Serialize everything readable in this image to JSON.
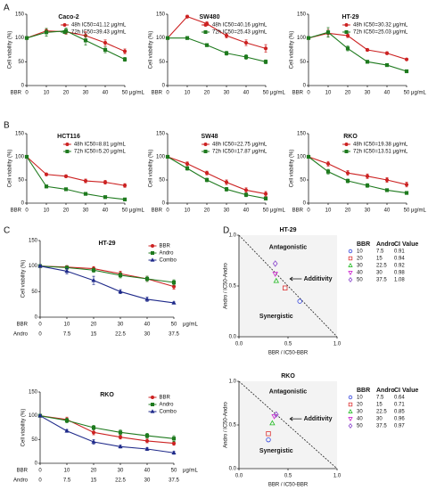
{
  "panels": [
    "A",
    "B",
    "C",
    "D"
  ],
  "chart_data": [
    {
      "type": "line",
      "title": "Caco-2",
      "ylabel": "Cell viability (%)",
      "xlabel": "BBR",
      "xunit": "μg/mL",
      "legend": "upper right",
      "x": [
        0,
        10,
        20,
        30,
        40,
        50
      ],
      "xlim": [
        0,
        50
      ],
      "xticks": [
        0,
        10,
        20,
        30,
        40,
        50
      ],
      "ylim": [
        0,
        150
      ],
      "yticks": [
        0,
        50,
        100,
        150
      ],
      "series": [
        {
          "name": "48h IC50=41.12 μg/mL",
          "color": "#cc2222",
          "marker": "circle",
          "values": [
            100,
            115,
            113,
            105,
            90,
            72
          ],
          "errors": [
            2,
            5,
            5,
            8,
            6,
            5
          ]
        },
        {
          "name": "72h IC50=39.43 μg/mL",
          "color": "#1e7a1e",
          "marker": "square",
          "values": [
            100,
            112,
            115,
            95,
            75,
            55
          ],
          "errors": [
            2,
            8,
            6,
            10,
            6,
            4
          ]
        }
      ]
    },
    {
      "type": "line",
      "title": "SW480",
      "ylabel": "Cell viability (%)",
      "xlabel": "BBR",
      "xunit": "μg/mL",
      "legend": "upper right",
      "x": [
        0,
        10,
        20,
        30,
        40,
        50
      ],
      "xlim": [
        0,
        50
      ],
      "xticks": [
        0,
        10,
        20,
        30,
        40,
        50
      ],
      "ylim": [
        0,
        150
      ],
      "yticks": [
        0,
        50,
        100,
        150
      ],
      "series": [
        {
          "name": "48h IC50=40.16 μg/mL",
          "color": "#cc2222",
          "marker": "circle",
          "values": [
            100,
            145,
            130,
            105,
            90,
            78
          ],
          "errors": [
            2,
            3,
            4,
            5,
            6,
            8
          ]
        },
        {
          "name": "72h IC50=25.43 μg/mL",
          "color": "#1e7a1e",
          "marker": "square",
          "values": [
            100,
            100,
            85,
            68,
            60,
            50
          ],
          "errors": [
            2,
            3,
            3,
            4,
            5,
            4
          ]
        }
      ]
    },
    {
      "type": "line",
      "title": "HT-29",
      "ylabel": "Cell viability (%)",
      "xlabel": "BBR",
      "xunit": "μg/mL",
      "legend": "upper right",
      "x": [
        0,
        10,
        20,
        30,
        40,
        50
      ],
      "xlim": [
        0,
        50
      ],
      "xticks": [
        0,
        10,
        20,
        30,
        40,
        50
      ],
      "ylim": [
        0,
        150
      ],
      "yticks": [
        0,
        50,
        100,
        150
      ],
      "series": [
        {
          "name": "48h IC50=30.32 μg/mL",
          "color": "#cc2222",
          "marker": "circle",
          "values": [
            100,
            110,
            105,
            75,
            68,
            55
          ],
          "errors": [
            2,
            8,
            4,
            3,
            3,
            2
          ]
        },
        {
          "name": "72h IC50=25.03 μg/mL",
          "color": "#1e7a1e",
          "marker": "square",
          "values": [
            100,
            112,
            78,
            50,
            43,
            30
          ],
          "errors": [
            2,
            10,
            5,
            3,
            3,
            2
          ]
        }
      ]
    },
    {
      "type": "line",
      "title": "HCT116",
      "ylabel": "Cell viability (%)",
      "xlabel": "BBR",
      "xunit": "μg/mL",
      "legend": "upper right",
      "x": [
        0,
        10,
        20,
        30,
        40,
        50
      ],
      "xlim": [
        0,
        50
      ],
      "xticks": [
        0,
        10,
        20,
        30,
        40,
        50
      ],
      "ylim": [
        0,
        150
      ],
      "yticks": [
        0,
        50,
        100,
        150
      ],
      "series": [
        {
          "name": "48h IC50=8.81 μg/mL",
          "color": "#cc2222",
          "marker": "circle",
          "values": [
            100,
            62,
            58,
            48,
            45,
            38
          ],
          "errors": [
            2,
            3,
            3,
            4,
            4,
            4
          ]
        },
        {
          "name": "72h IC50=5.20 μg/mL",
          "color": "#1e7a1e",
          "marker": "square",
          "values": [
            100,
            36,
            30,
            20,
            13,
            8
          ],
          "errors": [
            2,
            3,
            3,
            3,
            2,
            2
          ]
        }
      ]
    },
    {
      "type": "line",
      "title": "SW48",
      "ylabel": "Cell viability (%)",
      "xlabel": "BBR",
      "xunit": "μg/mL",
      "legend": "upper right",
      "x": [
        0,
        10,
        20,
        30,
        40,
        50
      ],
      "xlim": [
        0,
        50
      ],
      "xticks": [
        0,
        10,
        20,
        30,
        40,
        50
      ],
      "ylim": [
        0,
        150
      ],
      "yticks": [
        0,
        50,
        100,
        150
      ],
      "series": [
        {
          "name": "48h IC50=22.75 μg/mL",
          "color": "#cc2222",
          "marker": "circle",
          "values": [
            100,
            85,
            65,
            45,
            28,
            20
          ],
          "errors": [
            2,
            4,
            4,
            5,
            5,
            5
          ]
        },
        {
          "name": "72h IC50=17.87 μg/mL",
          "color": "#1e7a1e",
          "marker": "square",
          "values": [
            100,
            75,
            50,
            30,
            18,
            10
          ],
          "errors": [
            2,
            4,
            4,
            4,
            4,
            3
          ]
        }
      ]
    },
    {
      "type": "line",
      "title": "RKO",
      "ylabel": "Cell viability (%)",
      "xlabel": "BBR",
      "xunit": "μg/mL",
      "legend": "upper right",
      "x": [
        0,
        10,
        20,
        30,
        40,
        50
      ],
      "xlim": [
        0,
        50
      ],
      "xticks": [
        0,
        10,
        20,
        30,
        40,
        50
      ],
      "ylim": [
        0,
        150
      ],
      "yticks": [
        0,
        50,
        100,
        150
      ],
      "series": [
        {
          "name": "48h IC50=19.38 μg/mL",
          "color": "#cc2222",
          "marker": "circle",
          "values": [
            100,
            85,
            65,
            58,
            50,
            40
          ],
          "errors": [
            2,
            5,
            5,
            5,
            5,
            5
          ]
        },
        {
          "name": "72h IC50=13.51 μg/mL",
          "color": "#1e7a1e",
          "marker": "square",
          "values": [
            100,
            68,
            48,
            38,
            28,
            22
          ],
          "errors": [
            2,
            5,
            4,
            4,
            3,
            3
          ]
        }
      ]
    },
    {
      "type": "line",
      "title": "HT-29",
      "ylabel": "Cell viability (%)",
      "xlabel": "BBR",
      "x2label": "Andro",
      "xunit": "μg/mL",
      "legend": "upper right",
      "x": [
        0,
        10,
        20,
        30,
        40,
        50
      ],
      "xlim": [
        0,
        50
      ],
      "xticks": [
        0,
        10,
        20,
        30,
        40,
        50
      ],
      "x2_labels": [
        0,
        7.5,
        15,
        22.5,
        30,
        37.5
      ],
      "ylim": [
        0,
        150
      ],
      "yticks": [
        0,
        50,
        100,
        150
      ],
      "series": [
        {
          "name": "BBR",
          "color": "#cc2222",
          "marker": "circle",
          "values": [
            100,
            98,
            95,
            85,
            75,
            60
          ],
          "errors": [
            2,
            3,
            4,
            5,
            5,
            5
          ]
        },
        {
          "name": "Andro",
          "color": "#1e7a1e",
          "marker": "square",
          "values": [
            100,
            97,
            92,
            82,
            75,
            68
          ],
          "errors": [
            2,
            3,
            4,
            5,
            5,
            5
          ]
        },
        {
          "name": "Combo",
          "color": "#1f2a8a",
          "marker": "triangle",
          "values": [
            100,
            90,
            72,
            50,
            35,
            28
          ],
          "errors": [
            2,
            5,
            8,
            4,
            4,
            2
          ]
        }
      ]
    },
    {
      "type": "line",
      "title": "RKO",
      "ylabel": "Cell viability (%)",
      "xlabel": "BBR",
      "x2label": "Andro",
      "xunit": "μg/mL",
      "legend": "upper right",
      "x": [
        0,
        10,
        20,
        30,
        40,
        50
      ],
      "xlim": [
        0,
        50
      ],
      "xticks": [
        0,
        10,
        20,
        30,
        40,
        50
      ],
      "x2_labels": [
        0,
        7.5,
        15,
        22.5,
        30,
        37.5
      ],
      "ylim": [
        0,
        150
      ],
      "yticks": [
        0,
        50,
        100,
        150
      ],
      "series": [
        {
          "name": "BBR",
          "color": "#cc2222",
          "marker": "circle",
          "values": [
            100,
            92,
            65,
            55,
            47,
            42
          ],
          "errors": [
            2,
            5,
            5,
            4,
            4,
            4
          ]
        },
        {
          "name": "Andro",
          "color": "#1e7a1e",
          "marker": "square",
          "values": [
            100,
            90,
            75,
            65,
            58,
            52
          ],
          "errors": [
            2,
            5,
            5,
            5,
            5,
            6
          ]
        },
        {
          "name": "Combo",
          "color": "#1f2a8a",
          "marker": "triangle",
          "values": [
            100,
            68,
            45,
            35,
            30,
            22
          ],
          "errors": [
            2,
            3,
            5,
            3,
            3,
            3
          ]
        }
      ]
    },
    {
      "type": "scatter",
      "title": "HT-29",
      "xlabel": "BBR / IC50-BBR",
      "ylabel": "Andro / IC50-Andro",
      "annotations": [
        "Antagonistic",
        "Additivity",
        "Synergistic"
      ],
      "xlim": [
        0,
        1
      ],
      "ylim": [
        0,
        1
      ],
      "xticks": [
        {
          "value": 0,
          "label": "0.0"
        },
        0.5,
        {
          "value": 1,
          "label": "1.0"
        }
      ],
      "yticks": [
        {
          "value": 0,
          "label": "0.0"
        },
        0.5,
        {
          "value": 1,
          "label": "1.0"
        }
      ],
      "points": [
        {
          "x": 0.62,
          "y": 0.35,
          "shape": "circle",
          "color": "#3344dd"
        },
        {
          "x": 0.47,
          "y": 0.48,
          "shape": "square",
          "color": "#dd3333"
        },
        {
          "x": 0.38,
          "y": 0.55,
          "shape": "triangle",
          "color": "#22bb22"
        },
        {
          "x": 0.37,
          "y": 0.62,
          "shape": "triangle-down",
          "color": "#cc22cc"
        },
        {
          "x": 0.37,
          "y": 0.72,
          "shape": "diamond",
          "color": "#8844cc"
        }
      ],
      "table": {
        "columns": [
          "BBR",
          "Andro",
          "CI Value"
        ],
        "rows": [
          [
            10,
            7.5,
            0.91
          ],
          [
            20,
            15,
            0.94
          ],
          [
            30,
            22.5,
            0.92
          ],
          [
            40,
            30,
            0.98
          ],
          [
            50,
            37.5,
            1.08
          ]
        ]
      }
    },
    {
      "type": "scatter",
      "title": "RKO",
      "xlabel": "BBR / IC50-BBR",
      "ylabel": "Andro / IC50-Andro",
      "annotations": [
        "Antagonistic",
        "Additivity",
        "Synergistic"
      ],
      "xlim": [
        0,
        1
      ],
      "ylim": [
        0,
        1
      ],
      "xticks": [
        {
          "value": 0,
          "label": "0.0"
        },
        0.5,
        {
          "value": 1,
          "label": "1.0"
        }
      ],
      "yticks": [
        {
          "value": 0,
          "label": "0.0"
        },
        0.5,
        {
          "value": 1,
          "label": "1.0"
        }
      ],
      "points": [
        {
          "x": 0.3,
          "y": 0.33,
          "shape": "circle",
          "color": "#3344dd"
        },
        {
          "x": 0.3,
          "y": 0.4,
          "shape": "square",
          "color": "#dd3333"
        },
        {
          "x": 0.34,
          "y": 0.52,
          "shape": "triangle",
          "color": "#22bb22"
        },
        {
          "x": 0.36,
          "y": 0.6,
          "shape": "triangle-down",
          "color": "#cc22cc"
        },
        {
          "x": 0.38,
          "y": 0.62,
          "shape": "diamond",
          "color": "#8844cc"
        }
      ],
      "table": {
        "columns": [
          "BBR",
          "Andro",
          "CI Value"
        ],
        "rows": [
          [
            10,
            7.5,
            0.64
          ],
          [
            20,
            15,
            0.71
          ],
          [
            30,
            22.5,
            0.85
          ],
          [
            40,
            30,
            0.96
          ],
          [
            50,
            37.5,
            0.97
          ]
        ]
      }
    }
  ]
}
